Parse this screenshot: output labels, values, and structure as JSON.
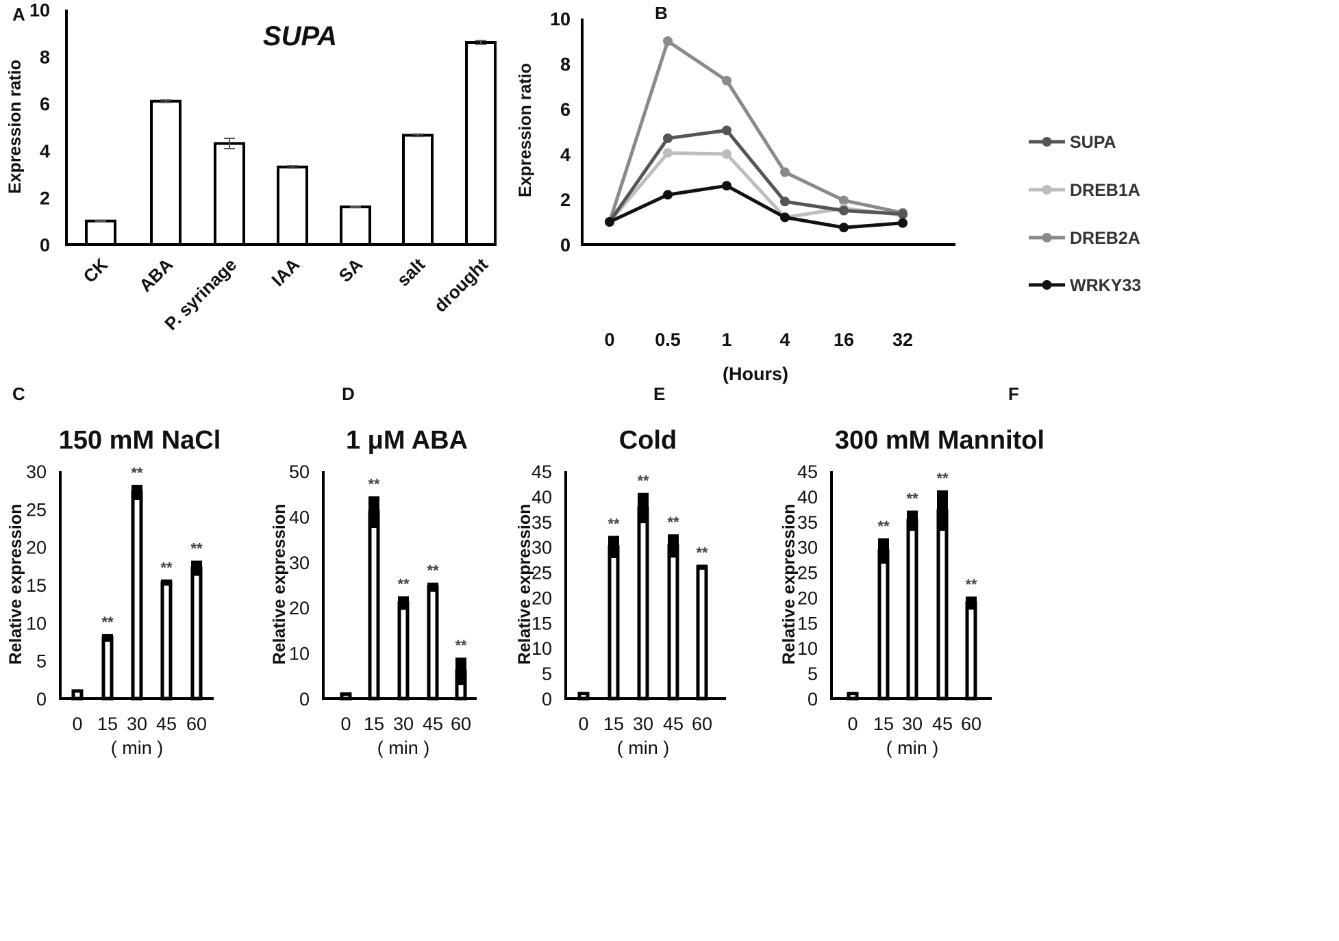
{
  "chart_data": [
    {
      "panel": "A",
      "type": "bar",
      "title": "SUPA",
      "ylabel": "Expression ratio",
      "xlabel": "",
      "ylim": [
        0,
        10
      ],
      "yticks": [
        0,
        2,
        4,
        6,
        8,
        10
      ],
      "categories": [
        "CK",
        "ABA",
        "P. syrinage",
        "IAA",
        "SA",
        "salt",
        "drought"
      ],
      "values": [
        1.0,
        6.1,
        4.3,
        3.3,
        1.6,
        4.65,
        8.6
      ],
      "errors": [
        0.03,
        0.05,
        0.22,
        0.05,
        0.03,
        0.05,
        0.08
      ]
    },
    {
      "panel": "B",
      "type": "line",
      "title": "",
      "ylabel": "Expression ratio",
      "xlabel": "(Hours)",
      "ylim": [
        0,
        10
      ],
      "yticks": [
        0,
        2,
        4,
        6,
        8,
        10
      ],
      "categories": [
        "0",
        "0.5",
        "1",
        "4",
        "16",
        "32"
      ],
      "legend": "right",
      "series": [
        {
          "name": "DREB2A",
          "color": "#8a8a8a",
          "values": [
            1.0,
            9.0,
            7.25,
            3.2,
            1.95,
            1.4
          ]
        },
        {
          "name": "DREB1A",
          "color": "#bdbdbd",
          "values": [
            1.0,
            4.05,
            4.0,
            1.2,
            1.6,
            1.3
          ]
        },
        {
          "name": "SUPA",
          "color": "#555555",
          "values": [
            1.0,
            4.7,
            5.05,
            1.9,
            1.5,
            1.35
          ]
        },
        {
          "name": "WRKY33",
          "color": "#111111",
          "values": [
            1.0,
            2.2,
            2.6,
            1.2,
            0.75,
            0.95
          ]
        }
      ],
      "legend_order": [
        "SUPA",
        "DREB1A",
        "DREB2A",
        "WRKY33"
      ]
    },
    {
      "panel": "C",
      "type": "bar",
      "title": "150 mM NaCl",
      "ylabel": "Relative expression",
      "xlabel": "( min )",
      "ylim": [
        0,
        30
      ],
      "yticks": [
        0,
        5,
        10,
        15,
        20,
        25,
        30
      ],
      "categories": [
        "0",
        "15",
        "30",
        "45",
        "60"
      ],
      "values": [
        1.0,
        8.0,
        27.2,
        15.3,
        17.2
      ],
      "errors": [
        0.1,
        0.5,
        1.0,
        0.4,
        1.0
      ],
      "significance": [
        "",
        "**",
        "**",
        "**",
        "**"
      ]
    },
    {
      "panel": "D",
      "type": "bar",
      "title": "1 μM ABA",
      "ylabel": "Relative expression",
      "xlabel": "( min )",
      "ylim": [
        0,
        50
      ],
      "yticks": [
        0,
        10,
        20,
        30,
        40,
        50
      ],
      "categories": [
        "0",
        "15",
        "30",
        "45",
        "60"
      ],
      "values": [
        1.0,
        41.0,
        21.0,
        24.5,
        6.0
      ],
      "errors": [
        0.1,
        3.5,
        1.5,
        1.0,
        3.0
      ],
      "significance": [
        "",
        "**",
        "**",
        "**",
        "**"
      ]
    },
    {
      "panel": "E",
      "type": "bar",
      "title": "Cold",
      "ylabel": "Relative expression",
      "xlabel": "( min )",
      "ylim": [
        0,
        45
      ],
      "yticks": [
        0,
        5,
        10,
        15,
        20,
        25,
        30,
        35,
        40,
        45
      ],
      "categories": [
        "0",
        "15",
        "30",
        "45",
        "60"
      ],
      "values": [
        1.0,
        30.0,
        37.7,
        30.2,
        26.0
      ],
      "errors": [
        0.1,
        2.2,
        3.0,
        2.3,
        0.5
      ],
      "significance": [
        "",
        "**",
        "**",
        "**",
        "**"
      ]
    },
    {
      "panel": "F",
      "type": "bar",
      "title": "300 mM Mannitol",
      "ylabel": "Relative expression",
      "xlabel": "( min )",
      "ylim": [
        0,
        45
      ],
      "yticks": [
        0,
        5,
        10,
        15,
        20,
        25,
        30,
        35,
        40,
        45
      ],
      "categories": [
        "0",
        "15",
        "30",
        "45",
        "60"
      ],
      "values": [
        1.0,
        29.2,
        35.2,
        37.2,
        18.9
      ],
      "errors": [
        0.1,
        2.5,
        2.0,
        4.0,
        1.3
      ],
      "significance": [
        "",
        "**",
        "**",
        "**",
        "**"
      ]
    }
  ]
}
